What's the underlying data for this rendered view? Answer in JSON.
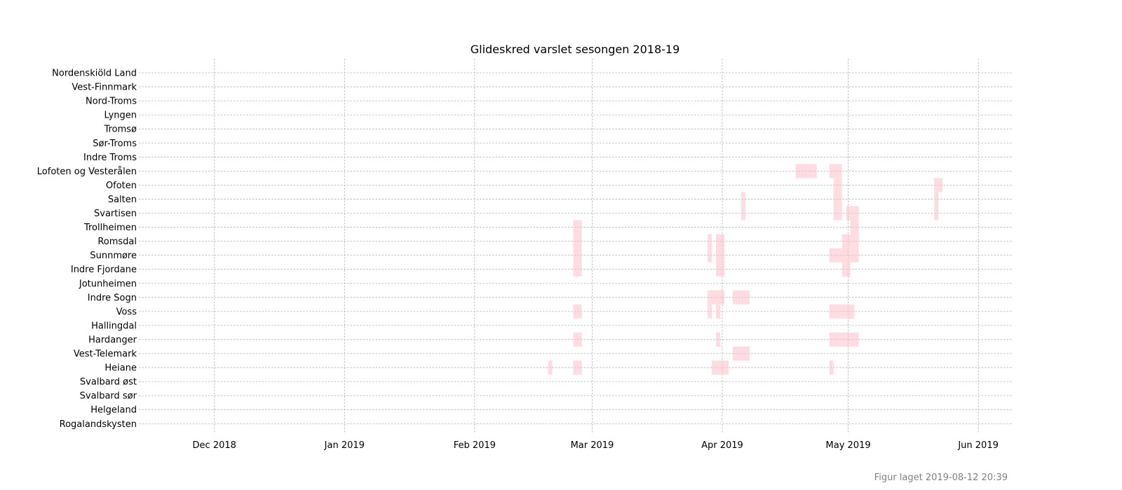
{
  "chart_data": {
    "type": "heatmap",
    "title": "Glideskred varslet sesongen 2018-19",
    "footer": "Figur laget 2019-08-12 20:39",
    "xlabel": "",
    "ylabel": "",
    "xlim": [
      "2018-11-13",
      "2019-06-09"
    ],
    "grid": true,
    "color": "#ffc0cb",
    "regions": [
      "Nordenskiöld Land",
      "Vest-Finnmark",
      "Nord-Troms",
      "Lyngen",
      "Tromsø",
      "Sør-Troms",
      "Indre Troms",
      "Lofoten og Vesterålen",
      "Ofoten",
      "Salten",
      "Svartisen",
      "Trollheimen",
      "Romsdal",
      "Sunnmøre",
      "Indre Fjordane",
      "Jotunheimen",
      "Indre Sogn",
      "Voss",
      "Hallingdal",
      "Hardanger",
      "Vest-Telemark",
      "Heiane",
      "Svalbard øst",
      "Svalbard sør",
      "Helgeland",
      "Rogalandskysten"
    ],
    "xticks": [
      {
        "date": "2018-12-01",
        "label": "Dec 2018"
      },
      {
        "date": "2019-01-01",
        "label": "Jan 2019"
      },
      {
        "date": "2019-02-01",
        "label": "Feb 2019"
      },
      {
        "date": "2019-03-01",
        "label": "Mar 2019"
      },
      {
        "date": "2019-04-01",
        "label": "Apr 2019"
      },
      {
        "date": "2019-05-01",
        "label": "May 2019"
      },
      {
        "date": "2019-06-01",
        "label": "Jun 2019"
      }
    ],
    "warnings": [
      {
        "region": "Lofoten og Vesterålen",
        "dates": [
          "2019-04-19",
          "2019-04-20",
          "2019-04-21",
          "2019-04-22",
          "2019-04-23",
          "2019-04-27",
          "2019-04-28",
          "2019-04-29"
        ]
      },
      {
        "region": "Ofoten",
        "dates": [
          "2019-04-28",
          "2019-04-29",
          "2019-05-22",
          "2019-05-23"
        ]
      },
      {
        "region": "Salten",
        "dates": [
          "2019-04-06",
          "2019-04-28",
          "2019-04-29",
          "2019-05-22"
        ]
      },
      {
        "region": "Svartisen",
        "dates": [
          "2019-04-06",
          "2019-04-28",
          "2019-04-29",
          "2019-05-01",
          "2019-05-02",
          "2019-05-03",
          "2019-05-22"
        ]
      },
      {
        "region": "Trollheimen",
        "dates": [
          "2019-02-25",
          "2019-02-26",
          "2019-05-02",
          "2019-05-03"
        ]
      },
      {
        "region": "Romsdal",
        "dates": [
          "2019-02-25",
          "2019-02-26",
          "2019-03-29",
          "2019-03-31",
          "2019-04-01",
          "2019-04-30",
          "2019-05-01",
          "2019-05-02",
          "2019-05-03"
        ]
      },
      {
        "region": "Sunnmøre",
        "dates": [
          "2019-02-25",
          "2019-02-26",
          "2019-03-29",
          "2019-03-31",
          "2019-04-01",
          "2019-04-27",
          "2019-04-28",
          "2019-04-29",
          "2019-04-30",
          "2019-05-01",
          "2019-05-02",
          "2019-05-03"
        ]
      },
      {
        "region": "Indre Fjordane",
        "dates": [
          "2019-02-25",
          "2019-02-26",
          "2019-03-31",
          "2019-04-01",
          "2019-04-30",
          "2019-05-01"
        ]
      },
      {
        "region": "Indre Sogn",
        "dates": [
          "2019-03-29",
          "2019-03-30",
          "2019-03-31",
          "2019-04-01",
          "2019-04-04",
          "2019-04-05",
          "2019-04-06",
          "2019-04-07"
        ]
      },
      {
        "region": "Voss",
        "dates": [
          "2019-02-25",
          "2019-02-26",
          "2019-03-29",
          "2019-03-31",
          "2019-04-27",
          "2019-04-28",
          "2019-04-29",
          "2019-04-30",
          "2019-05-01",
          "2019-05-02"
        ]
      },
      {
        "region": "Hardanger",
        "dates": [
          "2019-02-25",
          "2019-02-26",
          "2019-03-31",
          "2019-04-27",
          "2019-04-28",
          "2019-04-29",
          "2019-04-30",
          "2019-05-01",
          "2019-05-02",
          "2019-05-03"
        ]
      },
      {
        "region": "Vest-Telemark",
        "dates": [
          "2019-04-04",
          "2019-04-05",
          "2019-04-06",
          "2019-04-07"
        ]
      },
      {
        "region": "Heiane",
        "dates": [
          "2019-02-19",
          "2019-02-25",
          "2019-02-26",
          "2019-03-30",
          "2019-03-31",
          "2019-04-01",
          "2019-04-02",
          "2019-04-27"
        ]
      }
    ]
  }
}
